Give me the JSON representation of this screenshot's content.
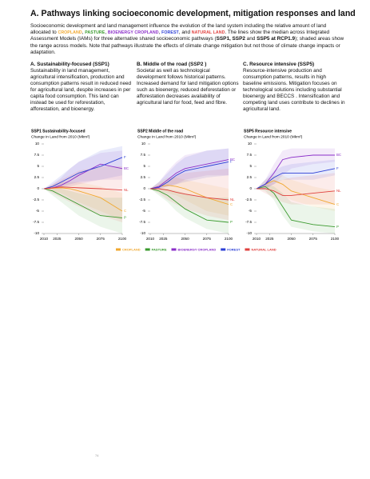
{
  "title": "A. Pathways linking socioeconomic development, mitigation responses and land",
  "intro": [
    {
      "text": "Socioeconomic development and land management influence the evolution of the land system including the relative amount of land allocated to "
    },
    {
      "text": "CROPLAND",
      "color": "#f0a830"
    },
    {
      "text": ", "
    },
    {
      "text": "PASTURE",
      "color": "#3a9a2e"
    },
    {
      "text": ", "
    },
    {
      "text": "BIOENERGY CROPLAND",
      "color": "#8b2fc9"
    },
    {
      "text": ", "
    },
    {
      "text": "FOREST",
      "color": "#2c3fd6"
    },
    {
      "text": ", and "
    },
    {
      "text": "NATURAL LAND",
      "color": "#e0413f"
    },
    {
      "text": ". The lines show the median across Integrated Assessment Models (IAMs) for three alternative shared socioeconomic pathways ("
    },
    {
      "text": "SSP1, SSP2",
      "bold": true
    },
    {
      "text": " and "
    },
    {
      "text": "SSP5 at RCP1.9",
      "bold": true
    },
    {
      "text": "); shaded areas show the range across models. Note that pathways illustrate the effects of climate change mitigation but not those of climate change impacts or adaptation."
    }
  ],
  "columns": [
    {
      "heading": "A. Sustainability-focused (SSP1)",
      "text": "Sustainability in land management, agricultural intensification,  production and consumption patterns result in reduced need for agricultural land, despite increases in per capita food consumption. This land can instead be used for reforestation, afforestation, and bioenergy."
    },
    {
      "heading": "B. Middle of the road (SSP2 )",
      "text": "Societal as well as technological development follows historical patterns. Increased demand for land mitigation options such as bioenergy, reduced deforestation or afforestation decreases availability of agricultural land for food, feed and fibre."
    },
    {
      "heading": "C. Resource intensive (SSP5)",
      "text": "Resource-intensive production and consumption patterns,  results in high baseline emissions. Mitigation focuses on technological solutions including substantial bioenergy and BECCS . Intensification and competing land uses contribute to declines in agricultural land."
    }
  ],
  "chart_data": [
    {
      "type": "line",
      "title": "SSP1 Sustainability-focused",
      "y_label": "Change in Land from 2010 (Mkm²)",
      "x": [
        2010,
        2020,
        2030,
        2040,
        2050,
        2075,
        2100
      ],
      "xlim": [
        2010,
        2100
      ],
      "xticks": [
        2010,
        2025,
        2050,
        2075,
        2100
      ],
      "ylim": [
        -10,
        10
      ],
      "yticks": [
        10,
        7.5,
        5,
        2.5,
        0,
        -2.5,
        -5,
        -7.5,
        -10
      ],
      "series": [
        {
          "name": "CROPLAND",
          "label": "C",
          "color": "#f0a830",
          "values": [
            0,
            0.1,
            0.2,
            0,
            -0.5,
            -2,
            -5
          ],
          "low": [
            0,
            -0.5,
            -1,
            -2,
            -3,
            -5,
            -7
          ],
          "high": [
            0,
            0.8,
            1.5,
            1.5,
            1.5,
            0.5,
            -1
          ]
        },
        {
          "name": "PASTURE",
          "label": "P",
          "color": "#3a9a2e",
          "values": [
            0,
            -0.5,
            -1.5,
            -2.5,
            -3.5,
            -6,
            -6.5
          ],
          "low": [
            0,
            -1.5,
            -3,
            -4.5,
            -6,
            -8.5,
            -10
          ],
          "high": [
            0,
            0,
            0,
            -0.5,
            -1,
            -2,
            -2
          ]
        },
        {
          "name": "BIOENERGY CROPLAND",
          "label": "BC",
          "color": "#8b2fc9",
          "values": [
            0,
            0.2,
            0.8,
            1.8,
            3,
            5.5,
            4.5
          ],
          "low": [
            0,
            0,
            0,
            0.5,
            1,
            2,
            2
          ],
          "high": [
            0,
            1,
            2.5,
            4.5,
            6,
            8,
            8.5
          ]
        },
        {
          "name": "FOREST",
          "label": "F",
          "color": "#2c3fd6",
          "values": [
            0,
            0.5,
            1.5,
            2.5,
            3.5,
            5,
            7
          ],
          "low": [
            0,
            0,
            0.5,
            1,
            1.5,
            2,
            3
          ],
          "high": [
            0,
            1.5,
            3,
            4.5,
            6,
            8.5,
            9.5
          ]
        },
        {
          "name": "NATURAL LAND",
          "label": "NL",
          "color": "#e0413f",
          "values": [
            0,
            0.2,
            0.4,
            0.3,
            0.2,
            0,
            -0.3
          ],
          "low": [
            0,
            -1,
            -2,
            -3,
            -4,
            -6,
            -7.5
          ],
          "high": [
            0,
            1,
            2,
            3,
            4,
            5,
            5
          ]
        }
      ]
    },
    {
      "type": "line",
      "title": "SSP2 Middle of the road",
      "y_label": "Change in Land from 2010 (Mkm²)",
      "x": [
        2010,
        2020,
        2030,
        2040,
        2050,
        2075,
        2100
      ],
      "xlim": [
        2010,
        2100
      ],
      "xticks": [
        2010,
        2025,
        2050,
        2075,
        2100
      ],
      "ylim": [
        -10,
        10
      ],
      "yticks": [
        10,
        7.5,
        5,
        2.5,
        0,
        -2.5,
        -5,
        -7.5,
        -10
      ],
      "series": [
        {
          "name": "CROPLAND",
          "label": "C",
          "color": "#f0a830",
          "values": [
            0,
            0.5,
            0.8,
            0.5,
            0,
            -2,
            -3.5
          ],
          "low": [
            0,
            -0.5,
            -1,
            -1.5,
            -2.5,
            -5,
            -6
          ],
          "high": [
            0,
            1.5,
            2.5,
            2.5,
            2,
            1,
            0
          ]
        },
        {
          "name": "PASTURE",
          "label": "P",
          "color": "#3a9a2e",
          "values": [
            0,
            -0.5,
            -1.5,
            -3,
            -4.5,
            -7,
            -7.5
          ],
          "low": [
            0,
            -1.5,
            -3,
            -5,
            -6.5,
            -9,
            -10
          ],
          "high": [
            0,
            0,
            0,
            -0.5,
            -1,
            -2,
            -2
          ]
        },
        {
          "name": "BIOENERGY CROPLAND",
          "label": "BC",
          "color": "#8b2fc9",
          "values": [
            0,
            0.5,
            2,
            3.5,
            4.5,
            5.5,
            6.5
          ],
          "low": [
            0,
            0,
            0.5,
            1,
            2,
            3,
            3
          ],
          "high": [
            0,
            1.5,
            4,
            6,
            7.5,
            8.5,
            9
          ]
        },
        {
          "name": "FOREST",
          "label": "F",
          "color": "#2c3fd6",
          "values": [
            0,
            0.3,
            1.5,
            3,
            4,
            5,
            6
          ],
          "low": [
            0,
            0,
            0.5,
            1,
            1.5,
            2.5,
            3
          ],
          "high": [
            0,
            1.5,
            3.5,
            5.5,
            7,
            8.5,
            9
          ]
        },
        {
          "name": "NATURAL LAND",
          "label": "NL",
          "color": "#e0413f",
          "values": [
            0,
            0,
            -0.3,
            -0.8,
            -1.2,
            -2,
            -2.5
          ],
          "low": [
            0,
            -1,
            -2.5,
            -3.5,
            -4.5,
            -6,
            -7
          ],
          "high": [
            0,
            1,
            2,
            3,
            3.5,
            4,
            4.5
          ]
        }
      ]
    },
    {
      "type": "line",
      "title": "SSP5 Resource intensive",
      "y_label": "Change in Land from 2010 (Mkm²)",
      "x": [
        2010,
        2020,
        2030,
        2040,
        2050,
        2075,
        2100
      ],
      "xlim": [
        2010,
        2100
      ],
      "xticks": [
        2010,
        2025,
        2050,
        2075,
        2100
      ],
      "ylim": [
        -10,
        10
      ],
      "yticks": [
        10,
        7.5,
        5,
        2.5,
        0,
        -2.5,
        -5,
        -7.5,
        -10
      ],
      "series": [
        {
          "name": "CROPLAND",
          "label": "C",
          "color": "#f0a830",
          "values": [
            0,
            1,
            1.8,
            1,
            -0.5,
            -2,
            -3.5
          ],
          "low": [
            0,
            0,
            -0.5,
            -1.5,
            -2.5,
            -4,
            -5
          ],
          "high": [
            0,
            2,
            3,
            3,
            2,
            0.5,
            -0.5
          ]
        },
        {
          "name": "PASTURE",
          "label": "P",
          "color": "#3a9a2e",
          "values": [
            0,
            0.5,
            -1,
            -4,
            -7,
            -8,
            -8.5
          ],
          "low": [
            0,
            -0.5,
            -2.5,
            -6,
            -8.5,
            -9.5,
            -10
          ],
          "high": [
            0,
            1,
            0.5,
            -1,
            -3,
            -4,
            -4.5
          ]
        },
        {
          "name": "BIOENERGY CROPLAND",
          "label": "BC",
          "color": "#8b2fc9",
          "values": [
            0,
            1,
            3.5,
            6.5,
            7,
            7.5,
            7.5
          ],
          "low": [
            0,
            0,
            1,
            3,
            4.5,
            5.5,
            6
          ],
          "high": [
            0,
            2,
            5.5,
            8.5,
            9,
            9,
            9
          ]
        },
        {
          "name": "FOREST",
          "label": "F",
          "color": "#2c3fd6",
          "values": [
            0,
            1,
            2.5,
            3.5,
            3.5,
            3.5,
            4.5
          ],
          "low": [
            0,
            0,
            1,
            2,
            2,
            2,
            3
          ],
          "high": [
            0,
            2,
            4,
            5,
            5.5,
            6,
            6.5
          ]
        },
        {
          "name": "NATURAL LAND",
          "label": "NL",
          "color": "#e0413f",
          "values": [
            0,
            0,
            -0.5,
            -1.5,
            -1.5,
            -1,
            -0.5
          ],
          "low": [
            0,
            -1,
            -2,
            -3,
            -3.5,
            -3.5,
            -3.5
          ],
          "high": [
            0,
            1,
            1.5,
            2,
            2.5,
            3,
            3.5
          ]
        }
      ]
    }
  ],
  "page_number": "74"
}
